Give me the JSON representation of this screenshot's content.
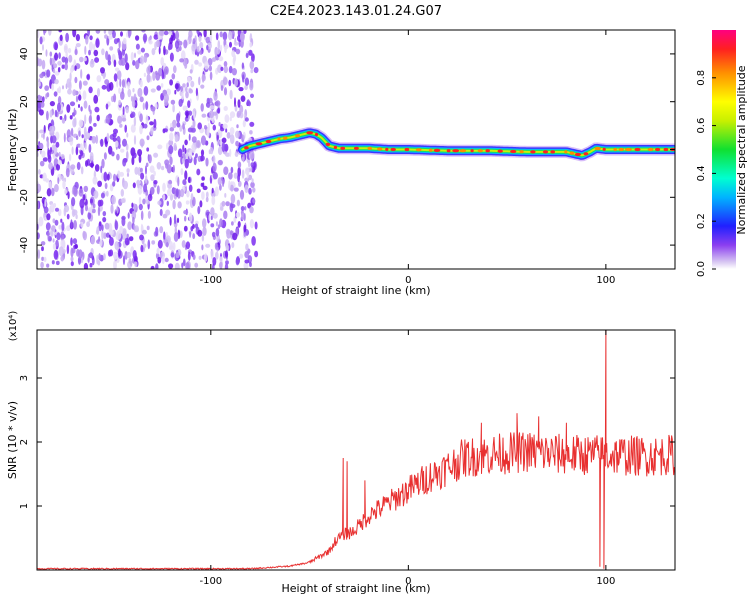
{
  "title": "C2E4.2023.143.01.24.G07",
  "chart_data": [
    {
      "type": "heatmap",
      "xlabel": "Height of straight line (km)",
      "ylabel": "Frequency (Hz)",
      "xlim": [
        -188,
        135
      ],
      "ylim": [
        -50,
        50
      ],
      "x_ticks": [
        -100,
        0,
        100
      ],
      "x_tick_labels": [
        "-100",
        "0",
        "100"
      ],
      "y_ticks": [
        -40,
        -20,
        0,
        20,
        40
      ],
      "y_tick_labels": [
        "-40",
        "-20",
        "0",
        "20",
        "40"
      ],
      "noise_region_x": [
        -188,
        -77
      ],
      "ridge": {
        "x": [
          -84,
          -80,
          -75,
          -70,
          -65,
          -60,
          -55,
          -50,
          -47,
          -44,
          -40,
          -35,
          -30,
          -20,
          -10,
          0,
          20,
          40,
          60,
          80,
          88,
          92,
          95,
          100,
          110,
          120,
          135
        ],
        "freq": [
          0,
          1.5,
          2.5,
          3.5,
          4.5,
          5,
          6,
          7,
          6.5,
          5,
          1.5,
          0.5,
          0.5,
          0.5,
          0,
          0,
          -0.5,
          -0.5,
          -1,
          -1,
          -2.5,
          -1,
          0.5,
          0,
          0,
          0,
          0
        ]
      },
      "colorbar": {
        "label": "Normalized spectral amplitude",
        "range": [
          0,
          1
        ],
        "ticks": [
          0,
          0.2,
          0.4,
          0.6,
          0.8
        ],
        "tick_labels": [
          "0.0",
          "0.2",
          "0.4",
          "0.6",
          "0.8"
        ]
      },
      "grid": false
    },
    {
      "type": "line",
      "xlabel": "Height of straight line (km)",
      "ylabel": "SNR (10 * v/v)",
      "y_multiplier": "(x10⁴)",
      "xlim": [
        -188,
        135
      ],
      "ylim": [
        0,
        3.75
      ],
      "x_ticks": [
        -100,
        0,
        100
      ],
      "x_tick_labels": [
        "-100",
        "0",
        "100"
      ],
      "y_ticks": [
        1,
        2,
        3
      ],
      "y_tick_labels": [
        "1",
        "2",
        "3"
      ],
      "series": [
        {
          "color": "#e83030",
          "profile_x": [
            -188,
            -80,
            -60,
            -50,
            -40,
            -37,
            -33,
            -28,
            -20,
            -10,
            0,
            10,
            20,
            28,
            40,
            60,
            80,
            100,
            120,
            135
          ],
          "profile_y": [
            0.02,
            0.02,
            0.06,
            0.12,
            0.3,
            0.45,
            0.55,
            0.6,
            0.85,
            1.05,
            1.25,
            1.45,
            1.6,
            1.75,
            1.8,
            1.85,
            1.8,
            1.8,
            1.78,
            1.8
          ],
          "spikes": [
            {
              "x": -33,
              "y": 1.75
            },
            {
              "x": -31,
              "y": 1.7
            },
            {
              "x": -22,
              "y": 1.4
            },
            {
              "x": 37,
              "y": 2.3
            },
            {
              "x": 55,
              "y": 2.45
            },
            {
              "x": 66,
              "y": 2.4
            },
            {
              "x": 80,
              "y": 2.3
            },
            {
              "x": 100,
              "y": 3.75
            },
            {
              "x": 97,
              "y": 0.05
            },
            {
              "x": 99,
              "y": 0.02
            }
          ]
        }
      ],
      "grid": false
    }
  ]
}
